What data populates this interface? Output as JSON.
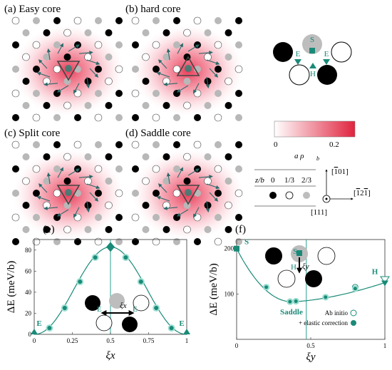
{
  "panels": {
    "a": "(a) Easy core",
    "b": "(b) hard core",
    "c": "(c) Split core",
    "d": "(d) Saddle core",
    "e": "(e)",
    "f": "(f)"
  },
  "legend": {
    "colorbar_min": "0",
    "colorbar_max": "0.2",
    "colorbar_label": "a ρ",
    "colorbar_sub": "b",
    "zb_header": "z/b",
    "zb_values": [
      "0",
      "1/3",
      "2/3"
    ],
    "directions": {
      "up": "[̅1̅ 01]",
      "right": "[̅1 2̅1]",
      "out": "[111]"
    }
  },
  "inset_labels": {
    "S": "S",
    "E": "E",
    "H": "H"
  },
  "chart_data": [
    {
      "type": "line",
      "panel": "(e)",
      "xlabel": "ξx",
      "ylabel": "ΔE (meV/b)",
      "xlim": [
        0,
        1
      ],
      "ylim": [
        0,
        90
      ],
      "xticks": [
        "0",
        "0.25",
        "0.5",
        "0.75",
        "1"
      ],
      "yticks": [
        "0",
        "20",
        "40",
        "60",
        "80"
      ],
      "points_x": [
        0,
        0.1,
        0.2,
        0.3,
        0.4,
        0.5,
        0.6,
        0.7,
        0.8,
        0.9,
        1.0
      ],
      "points_y": [
        0,
        6,
        25,
        50,
        73,
        83,
        73,
        50,
        25,
        6,
        0
      ],
      "annotations": [
        {
          "text": "E",
          "x": 0
        },
        {
          "text": "E",
          "x": 1
        }
      ],
      "inset": {
        "left": "E",
        "right": "E",
        "arrow": "ξx"
      }
    },
    {
      "type": "line",
      "panel": "(f)",
      "xlabel": "ξy",
      "ylabel": "ΔE (meV/b)",
      "xlim": [
        0,
        1
      ],
      "ylim": [
        0,
        220
      ],
      "xticks": [
        "0",
        "0.5",
        "1"
      ],
      "yticks": [
        "100",
        "200"
      ],
      "series": [
        {
          "name": "Ab initio",
          "x": [
            0.2,
            0.36,
            0.4,
            0.6,
            0.8,
            1.0
          ],
          "y": [
            115,
            83,
            84,
            93,
            115,
            132
          ]
        },
        {
          "name": "+ elastic correction",
          "x": [
            0.0,
            0.2,
            0.36,
            0.4,
            0.6,
            0.8,
            1.0
          ],
          "y": [
            200,
            115,
            83,
            84,
            93,
            112,
            125
          ]
        }
      ],
      "annotations": [
        {
          "text": "S",
          "x": 0
        },
        {
          "text": "H",
          "x": 1
        },
        {
          "text": "Saddle",
          "x": 0.37
        }
      ],
      "inset": {
        "top": "S",
        "bottom": "H",
        "arrow": "ξy"
      }
    }
  ]
}
